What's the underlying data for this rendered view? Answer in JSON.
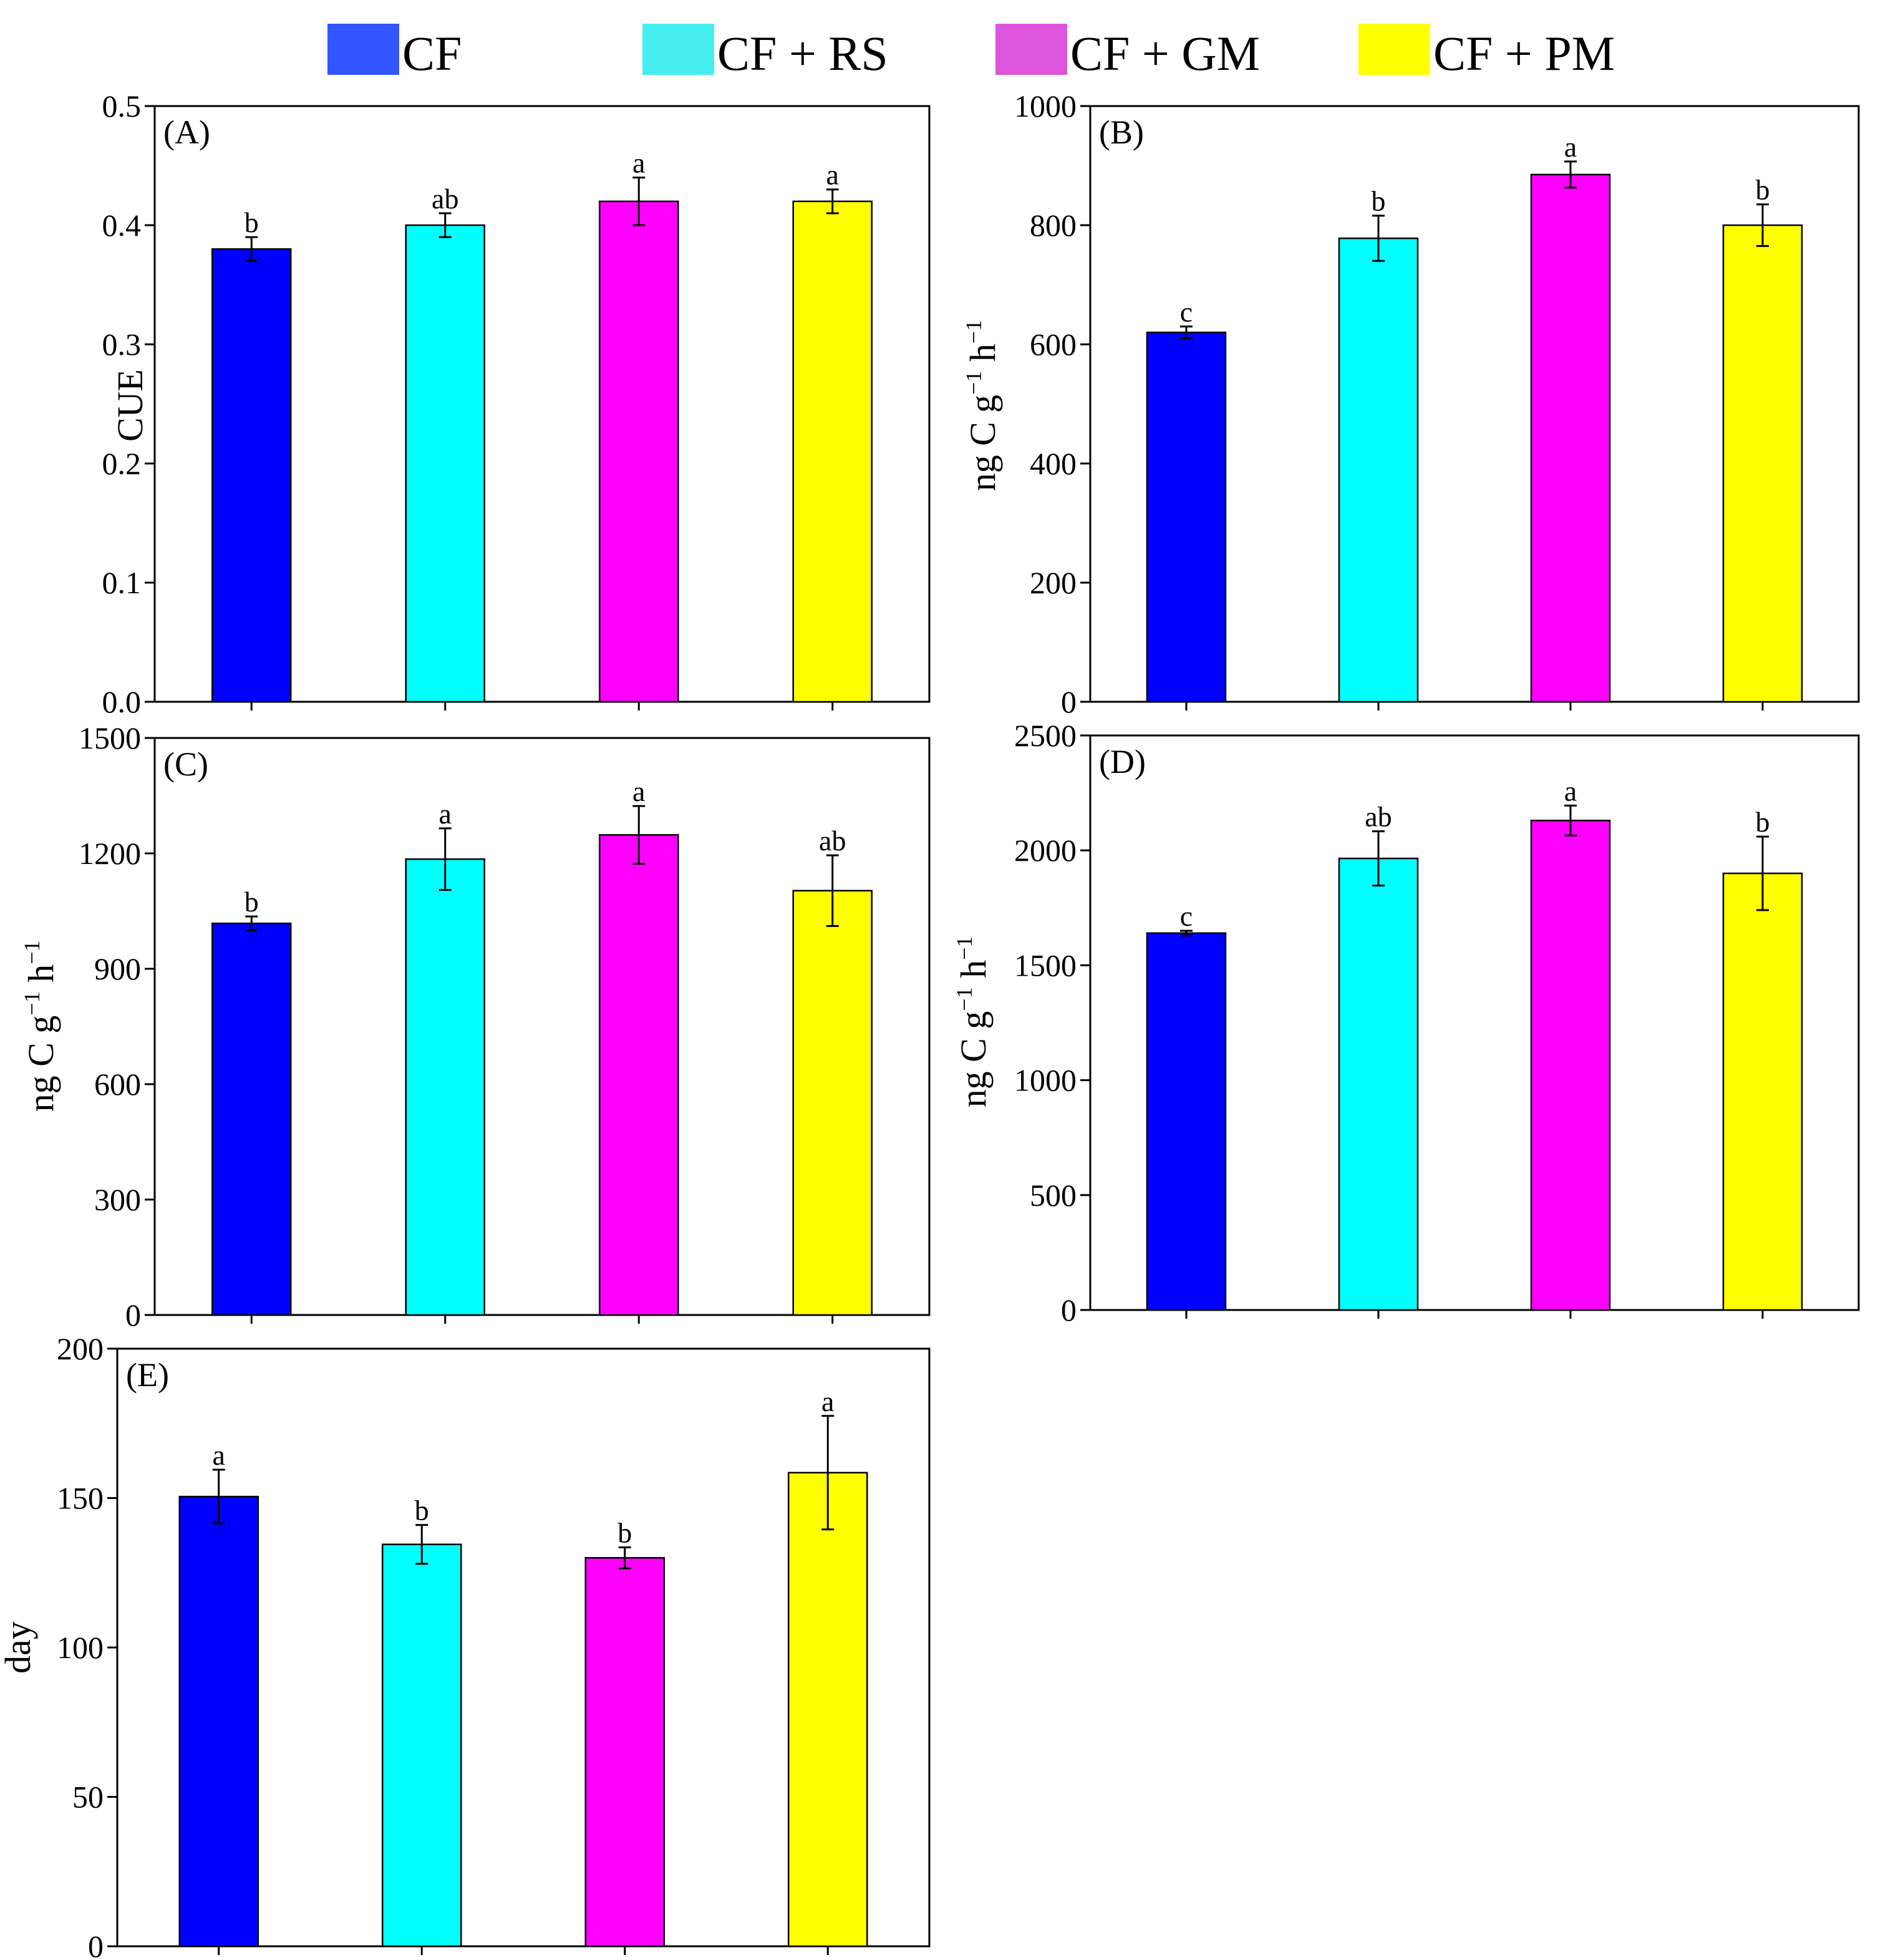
{
  "legend": [
    {
      "label": "CF",
      "color": "#3355ff"
    },
    {
      "label": "CF + RS",
      "color": "#44eeee"
    },
    {
      "label": "CF + GM",
      "color": "#dd55dd"
    },
    {
      "label": "CF + PM",
      "color": "#ffff00"
    }
  ],
  "bar_colors": [
    "#0000ff",
    "#00ffff",
    "#ff00ff",
    "#ffff00"
  ],
  "chart_data": [
    {
      "panel": "(A)",
      "type": "bar",
      "categories": [
        "CF",
        "CF + RS",
        "CF + GM",
        "CF + PM"
      ],
      "values": [
        0.38,
        0.4,
        0.42,
        0.42
      ],
      "errors": [
        0.01,
        0.01,
        0.02,
        0.01
      ],
      "letters": [
        "b",
        "ab",
        "a",
        "a"
      ],
      "ylabel": "CUE",
      "ylim": [
        0,
        0.5
      ],
      "yticks": [
        0,
        0.1,
        0.2,
        0.3,
        0.4,
        0.5
      ],
      "ytick_labels": [
        "0.0",
        "0.1",
        "0.2",
        "0.3",
        "0.4",
        "0.5"
      ]
    },
    {
      "panel": "(B)",
      "type": "bar",
      "categories": [
        "CF",
        "CF + RS",
        "CF + GM",
        "CF + PM"
      ],
      "values": [
        620,
        778,
        885,
        800
      ],
      "errors": [
        10,
        38,
        22,
        35
      ],
      "letters": [
        "c",
        "b",
        "a",
        "b"
      ],
      "ylabel": "ng C g−1 h−1",
      "ylim": [
        0,
        1000
      ],
      "yticks": [
        0,
        200,
        400,
        600,
        800,
        1000
      ],
      "ytick_labels": [
        "0",
        "200",
        "400",
        "600",
        "800",
        "1000"
      ]
    },
    {
      "panel": "(C)",
      "type": "bar",
      "categories": [
        "CF",
        "CF + RS",
        "CF + GM",
        "CF + PM"
      ],
      "values": [
        1018,
        1185,
        1248,
        1103
      ],
      "errors": [
        18,
        80,
        75,
        92
      ],
      "letters": [
        "b",
        "a",
        "a",
        "ab"
      ],
      "ylabel": "ng C g−1 h−1",
      "ylim": [
        0,
        1500
      ],
      "yticks": [
        0,
        300,
        600,
        900,
        1200,
        1500
      ],
      "ytick_labels": [
        "0",
        "300",
        "600",
        "900",
        "1200",
        "1500"
      ]
    },
    {
      "panel": "(D)",
      "type": "bar",
      "categories": [
        "CF",
        "CF + RS",
        "CF + GM",
        "CF + PM"
      ],
      "values": [
        1640,
        1965,
        2130,
        1900
      ],
      "errors": [
        10,
        118,
        65,
        160
      ],
      "letters": [
        "c",
        "ab",
        "a",
        "b"
      ],
      "ylabel": "ng C g−1 h−1",
      "ylim": [
        0,
        2500
      ],
      "yticks": [
        0,
        500,
        1000,
        1500,
        2000,
        2500
      ],
      "ytick_labels": [
        "0",
        "500",
        "1000",
        "1500",
        "2000",
        "2500"
      ]
    },
    {
      "panel": "(E)",
      "type": "bar",
      "categories": [
        "CF",
        "CF + RS",
        "CF + GM",
        "CF + PM"
      ],
      "values": [
        150.5,
        134.5,
        130,
        158.5
      ],
      "errors": [
        9,
        6.5,
        3.5,
        19
      ],
      "letters": [
        "a",
        "b",
        "b",
        "a"
      ],
      "ylabel": "day",
      "ylim": [
        0,
        200
      ],
      "yticks": [
        0,
        50,
        100,
        150,
        200
      ],
      "ytick_labels": [
        "0",
        "50",
        "100",
        "150",
        "200"
      ]
    }
  ]
}
